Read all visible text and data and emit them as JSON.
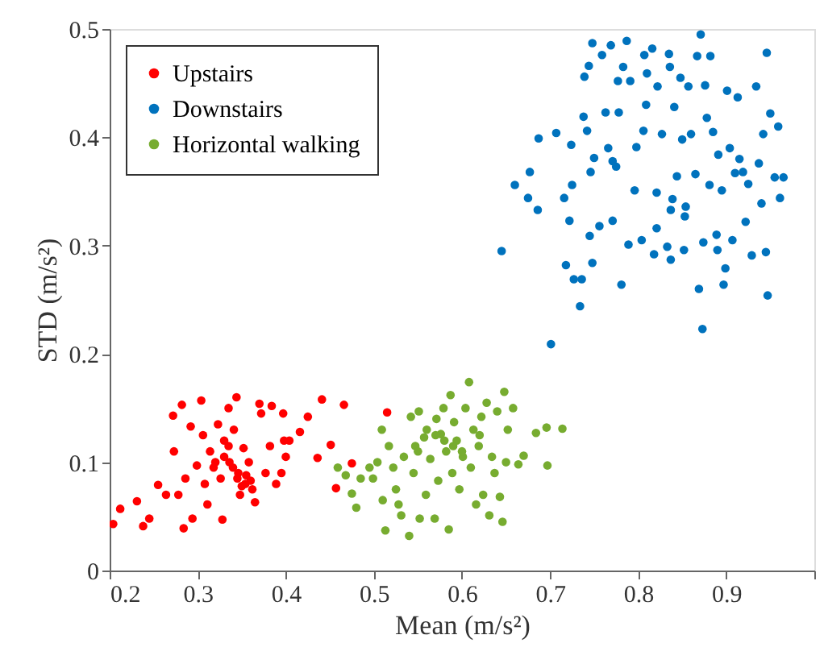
{
  "chart_data": {
    "type": "scatter",
    "xlabel": "Mean (m/s²)",
    "ylabel": "STD (m/s²)",
    "xlim": [
      0.2,
      1.0
    ],
    "xticks": [
      0.2,
      0.3,
      0.4,
      0.5,
      0.6,
      0.7,
      0.8,
      0.9,
      {
        "value": 1.0,
        "label": null
      }
    ],
    "ylim": [
      0,
      0.5
    ],
    "yticks": [
      0,
      0.1,
      0.2,
      0.3,
      0.4,
      0.5
    ],
    "grid": false,
    "legend": "top left",
    "marker": "circle",
    "series": [
      {
        "name": "Upstairs",
        "color": "#ff0000",
        "x": [
          0.204,
          0.212,
          0.231,
          0.238,
          0.245,
          0.255,
          0.264,
          0.272,
          0.273,
          0.278,
          0.282,
          0.284,
          0.286,
          0.292,
          0.294,
          0.299,
          0.304,
          0.306,
          0.308,
          0.311,
          0.314,
          0.318,
          0.323,
          0.326,
          0.328,
          0.33,
          0.335,
          0.336,
          0.341,
          0.344,
          0.346,
          0.348,
          0.352,
          0.354,
          0.358,
          0.362,
          0.365,
          0.37,
          0.372,
          0.377,
          0.382,
          0.384,
          0.389,
          0.395,
          0.397,
          0.398,
          0.4,
          0.404,
          0.416,
          0.425,
          0.436,
          0.441,
          0.451,
          0.457,
          0.466,
          0.475,
          0.515,
          0.33,
          0.34,
          0.345,
          0.35,
          0.355,
          0.32,
          0.36,
          0.335
        ],
        "values": [
          0.043,
          0.057,
          0.064,
          0.041,
          0.048,
          0.079,
          0.07,
          0.143,
          0.11,
          0.07,
          0.153,
          0.039,
          0.085,
          0.133,
          0.048,
          0.097,
          0.157,
          0.125,
          0.08,
          0.061,
          0.11,
          0.095,
          0.135,
          0.085,
          0.047,
          0.12,
          0.15,
          0.1,
          0.13,
          0.16,
          0.09,
          0.07,
          0.113,
          0.08,
          0.1,
          0.075,
          0.063,
          0.154,
          0.145,
          0.09,
          0.115,
          0.152,
          0.08,
          0.09,
          0.145,
          0.12,
          0.105,
          0.12,
          0.128,
          0.142,
          0.104,
          0.158,
          0.116,
          0.076,
          0.153,
          0.099,
          0.146,
          0.105,
          0.095,
          0.085,
          0.078,
          0.088,
          0.1,
          0.083,
          0.115
        ]
      },
      {
        "name": "Downstairs",
        "color": "#0072bd",
        "x": [
          0.645,
          0.66,
          0.675,
          0.677,
          0.686,
          0.687,
          0.701,
          0.707,
          0.716,
          0.718,
          0.722,
          0.724,
          0.725,
          0.727,
          0.734,
          0.736,
          0.738,
          0.739,
          0.742,
          0.745,
          0.746,
          0.748,
          0.75,
          0.744,
          0.748,
          0.756,
          0.759,
          0.763,
          0.766,
          0.769,
          0.771,
          0.771,
          0.775,
          0.777,
          0.778,
          0.781,
          0.783,
          0.787,
          0.789,
          0.791,
          0.796,
          0.798,
          0.804,
          0.806,
          0.807,
          0.809,
          0.81,
          0.816,
          0.818,
          0.821,
          0.821,
          0.822,
          0.827,
          0.833,
          0.835,
          0.836,
          0.837,
          0.837,
          0.839,
          0.841,
          0.844,
          0.848,
          0.85,
          0.852,
          0.853,
          0.854,
          0.857,
          0.86,
          0.865,
          0.867,
          0.869,
          0.871,
          0.873,
          0.874,
          0.876,
          0.878,
          0.881,
          0.882,
          0.885,
          0.889,
          0.89,
          0.891,
          0.895,
          0.897,
          0.899,
          0.901,
          0.904,
          0.907,
          0.91,
          0.913,
          0.915,
          0.919,
          0.922,
          0.925,
          0.929,
          0.934,
          0.937,
          0.94,
          0.942,
          0.945,
          0.946,
          0.947,
          0.95,
          0.955,
          0.959,
          0.961,
          0.965
        ],
        "values": [
          0.295,
          0.356,
          0.344,
          0.368,
          0.333,
          0.399,
          0.209,
          0.404,
          0.344,
          0.282,
          0.323,
          0.393,
          0.356,
          0.269,
          0.244,
          0.269,
          0.419,
          0.456,
          0.406,
          0.309,
          0.368,
          0.284,
          0.381,
          0.466,
          0.487,
          0.318,
          0.476,
          0.423,
          0.39,
          0.485,
          0.378,
          0.323,
          0.373,
          0.452,
          0.423,
          0.264,
          0.465,
          0.489,
          0.301,
          0.452,
          0.351,
          0.391,
          0.305,
          0.406,
          0.476,
          0.43,
          0.459,
          0.482,
          0.292,
          0.349,
          0.316,
          0.447,
          0.403,
          0.299,
          0.477,
          0.465,
          0.287,
          0.333,
          0.343,
          0.428,
          0.364,
          0.455,
          0.398,
          0.296,
          0.327,
          0.336,
          0.447,
          0.403,
          0.366,
          0.475,
          0.26,
          0.495,
          0.223,
          0.303,
          0.448,
          0.418,
          0.356,
          0.475,
          0.405,
          0.31,
          0.296,
          0.384,
          0.351,
          0.264,
          0.279,
          0.443,
          0.39,
          0.305,
          0.367,
          0.437,
          0.38,
          0.368,
          0.322,
          0.357,
          0.291,
          0.447,
          0.376,
          0.339,
          0.403,
          0.294,
          0.478,
          0.254,
          0.422,
          0.363,
          0.41,
          0.344,
          0.363
        ]
      },
      {
        "name": "Horizontal walking",
        "color": "#77ac30",
        "x": [
          0.459,
          0.468,
          0.475,
          0.48,
          0.485,
          0.495,
          0.499,
          0.504,
          0.509,
          0.51,
          0.513,
          0.517,
          0.522,
          0.525,
          0.528,
          0.531,
          0.534,
          0.54,
          0.542,
          0.545,
          0.547,
          0.551,
          0.552,
          0.557,
          0.559,
          0.564,
          0.569,
          0.571,
          0.573,
          0.576,
          0.579,
          0.582,
          0.585,
          0.587,
          0.589,
          0.591,
          0.594,
          0.597,
          0.601,
          0.604,
          0.608,
          0.61,
          0.613,
          0.616,
          0.619,
          0.622,
          0.624,
          0.628,
          0.631,
          0.634,
          0.637,
          0.64,
          0.643,
          0.646,
          0.648,
          0.65,
          0.652,
          0.658,
          0.664,
          0.67,
          0.684,
          0.696,
          0.697,
          0.714,
          0.58,
          0.59,
          0.57,
          0.6,
          0.56,
          0.55,
          0.62
        ],
        "values": [
          0.095,
          0.088,
          0.071,
          0.058,
          0.085,
          0.095,
          0.085,
          0.1,
          0.13,
          0.065,
          0.037,
          0.115,
          0.095,
          0.075,
          0.061,
          0.051,
          0.105,
          0.032,
          0.142,
          0.09,
          0.115,
          0.147,
          0.048,
          0.123,
          0.07,
          0.103,
          0.048,
          0.14,
          0.083,
          0.126,
          0.15,
          0.11,
          0.038,
          0.162,
          0.09,
          0.137,
          0.12,
          0.075,
          0.105,
          0.15,
          0.174,
          0.095,
          0.13,
          0.061,
          0.115,
          0.142,
          0.07,
          0.155,
          0.051,
          0.105,
          0.09,
          0.147,
          0.068,
          0.045,
          0.165,
          0.1,
          0.13,
          0.15,
          0.098,
          0.106,
          0.127,
          0.132,
          0.097,
          0.131,
          0.12,
          0.115,
          0.125,
          0.11,
          0.13,
          0.11,
          0.125
        ]
      }
    ]
  }
}
